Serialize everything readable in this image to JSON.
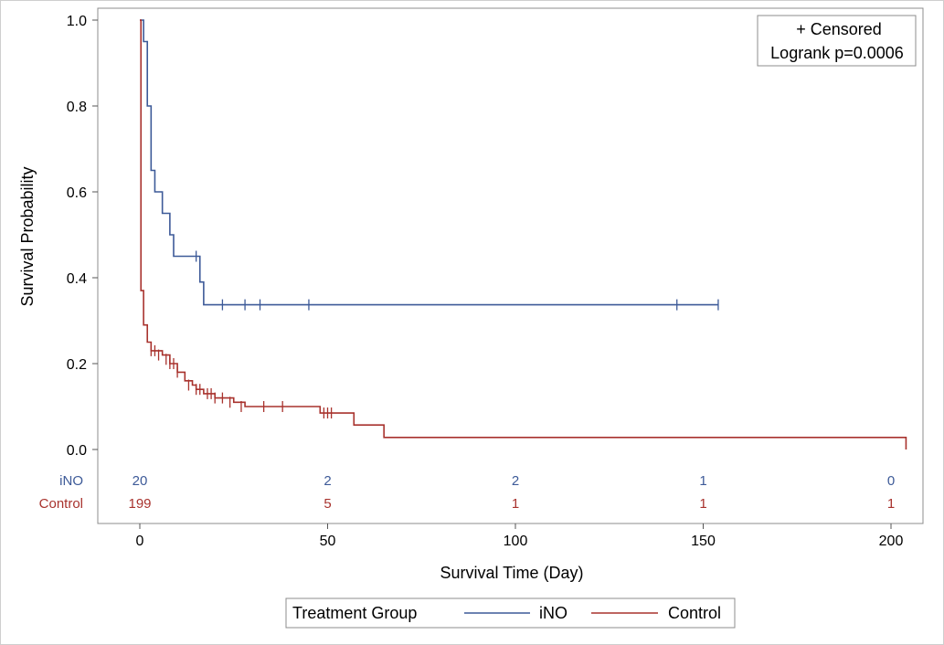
{
  "chart_data": {
    "type": "line",
    "title": "",
    "xlabel": "Survival Time (Day)",
    "ylabel": "Survival Probability",
    "xlim": [
      -10,
      205
    ],
    "ylim": [
      0,
      1.0
    ],
    "x_ticks": [
      0,
      50,
      100,
      150,
      200
    ],
    "x_tick_labels": [
      "0",
      "50",
      "100",
      "150",
      "200"
    ],
    "y_ticks": [
      0.0,
      0.2,
      0.4,
      0.6,
      0.8,
      1.0
    ],
    "y_tick_labels": [
      "0.0",
      "0.2",
      "0.4",
      "0.6",
      "0.8",
      "1.0"
    ],
    "grid": false,
    "inset": {
      "line1": "+ Censored",
      "line2": "Logrank p=0.0006",
      "placement": "top-right"
    },
    "legend": {
      "title": "Treatment Group",
      "placement": "bottom-outside",
      "entries": [
        "iNO",
        "Control"
      ]
    },
    "colors": {
      "iNO": "#3d5a98",
      "Control": "#a8322d"
    },
    "series": [
      {
        "name": "iNO",
        "step": [
          [
            0,
            1.0
          ],
          [
            1,
            0.95
          ],
          [
            2,
            0.8
          ],
          [
            3,
            0.65
          ],
          [
            4,
            0.6
          ],
          [
            6,
            0.55
          ],
          [
            8,
            0.5
          ],
          [
            9,
            0.45
          ],
          [
            16,
            0.39
          ],
          [
            17,
            0.337
          ],
          [
            154,
            0.337
          ]
        ],
        "censored": [
          [
            15,
            0.45
          ],
          [
            22,
            0.337
          ],
          [
            28,
            0.337
          ],
          [
            32,
            0.337
          ],
          [
            45,
            0.337
          ],
          [
            143,
            0.337
          ],
          [
            154,
            0.337
          ]
        ]
      },
      {
        "name": "Control",
        "step": [
          [
            0,
            1.0
          ],
          [
            0.3,
            0.37
          ],
          [
            1,
            0.29
          ],
          [
            2,
            0.25
          ],
          [
            3,
            0.23
          ],
          [
            6,
            0.22
          ],
          [
            8,
            0.2
          ],
          [
            10,
            0.18
          ],
          [
            12,
            0.16
          ],
          [
            14,
            0.15
          ],
          [
            15,
            0.14
          ],
          [
            17,
            0.13
          ],
          [
            20,
            0.12
          ],
          [
            25,
            0.11
          ],
          [
            28,
            0.1
          ],
          [
            48,
            0.085
          ],
          [
            57,
            0.057
          ],
          [
            65,
            0.028
          ],
          [
            204,
            0.028
          ],
          [
            204,
            0.0
          ]
        ],
        "censored": [
          [
            3,
            0.23
          ],
          [
            4,
            0.23
          ],
          [
            5,
            0.22
          ],
          [
            7,
            0.21
          ],
          [
            8,
            0.2
          ],
          [
            9,
            0.2
          ],
          [
            10,
            0.18
          ],
          [
            13,
            0.15
          ],
          [
            15,
            0.14
          ],
          [
            16,
            0.14
          ],
          [
            18,
            0.13
          ],
          [
            19,
            0.13
          ],
          [
            20,
            0.12
          ],
          [
            22,
            0.12
          ],
          [
            24,
            0.11
          ],
          [
            27,
            0.1
          ],
          [
            33,
            0.1
          ],
          [
            38,
            0.1
          ],
          [
            49,
            0.085
          ],
          [
            50,
            0.085
          ],
          [
            51,
            0.085
          ]
        ]
      }
    ],
    "at_risk": {
      "x": [
        0,
        50,
        100,
        150,
        200
      ],
      "rows": [
        {
          "name": "iNO",
          "counts": [
            "20",
            "2",
            "2",
            "1",
            "0"
          ]
        },
        {
          "name": "Control",
          "counts": [
            "199",
            "5",
            "1",
            "1",
            "1"
          ]
        }
      ]
    }
  }
}
